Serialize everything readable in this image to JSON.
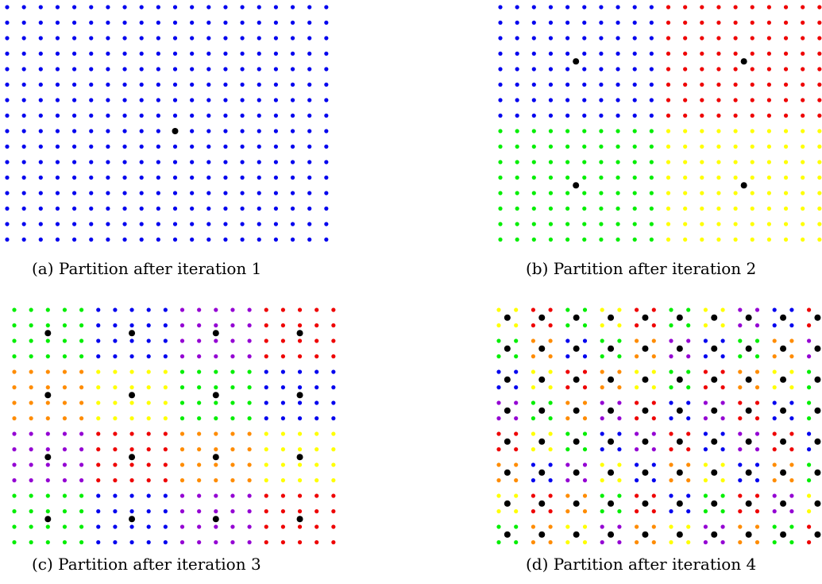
{
  "colors": {
    "blue": "#0000ee",
    "red": "#ee0000",
    "green": "#00ee00",
    "yellow": "#ffff00",
    "orange": "#ff8c00",
    "purple": "#9400d3",
    "center": "#000000"
  },
  "panels": [
    {
      "caption": "(a) Partition after iteration 1",
      "iteration": 1,
      "grid": {
        "cols": 20,
        "rows": 16
      },
      "regions": [
        {
          "col_range": [
            0,
            19
          ],
          "row_range": [
            0,
            15
          ],
          "color": "blue"
        }
      ],
      "centers": [
        {
          "col": 10,
          "row": 8
        }
      ]
    },
    {
      "caption": "(b) Partition after iteration 2",
      "iteration": 2,
      "grid": {
        "cols": 20,
        "rows": 16
      },
      "regions": [
        {
          "col_range": [
            0,
            9
          ],
          "row_range": [
            0,
            7
          ],
          "color": "blue"
        },
        {
          "col_range": [
            10,
            19
          ],
          "row_range": [
            0,
            7
          ],
          "color": "red"
        },
        {
          "col_range": [
            0,
            9
          ],
          "row_range": [
            8,
            15
          ],
          "color": "green"
        },
        {
          "col_range": [
            10,
            19
          ],
          "row_range": [
            8,
            15
          ],
          "color": "yellow"
        }
      ],
      "centers": [
        {
          "col": 4.5,
          "row": 3.5
        },
        {
          "col": 14.5,
          "row": 3.5
        },
        {
          "col": 4.5,
          "row": 11.5
        },
        {
          "col": 14.5,
          "row": 11.5
        }
      ]
    },
    {
      "caption": "(c) Partition after iteration 3",
      "iteration": 3,
      "grid": {
        "cols": 20,
        "rows": 16
      },
      "block_pattern": {
        "block_cols": 5,
        "block_rows": 4,
        "colors": [
          [
            "green",
            "blue",
            "purple",
            "red"
          ],
          [
            "orange",
            "yellow",
            "green",
            "blue"
          ],
          [
            "purple",
            "red",
            "orange",
            "yellow"
          ],
          [
            "green",
            "blue",
            "purple",
            "red"
          ]
        ]
      },
      "centers": [
        {
          "col": 2,
          "row": 1.5
        },
        {
          "col": 7,
          "row": 1.5
        },
        {
          "col": 12,
          "row": 1.5
        },
        {
          "col": 17,
          "row": 1.5
        },
        {
          "col": 2,
          "row": 5.5
        },
        {
          "col": 7,
          "row": 5.5
        },
        {
          "col": 12,
          "row": 5.5
        },
        {
          "col": 17,
          "row": 5.5
        },
        {
          "col": 2,
          "row": 9.5
        },
        {
          "col": 7,
          "row": 9.5
        },
        {
          "col": 12,
          "row": 9.5
        },
        {
          "col": 17,
          "row": 9.5
        },
        {
          "col": 2,
          "row": 13.5
        },
        {
          "col": 7,
          "row": 13.5
        },
        {
          "col": 12,
          "row": 13.5
        },
        {
          "col": 17,
          "row": 13.5
        }
      ]
    },
    {
      "caption": "(d) Partition after iteration 4",
      "iteration": 4,
      "grid": {
        "cols": 20,
        "rows": 16
      },
      "block_pattern": {
        "block_cols": 2,
        "block_rows": 2,
        "colors": [
          [
            "yellow",
            "red",
            "green",
            "yellow",
            "red",
            "green",
            "yellow",
            "purple",
            "blue",
            "red"
          ],
          [
            "green",
            "orange",
            "blue",
            "green",
            "orange",
            "purple",
            "blue",
            "green",
            "orange",
            "purple"
          ],
          [
            "blue",
            "yellow",
            "red",
            "orange",
            "yellow",
            "green",
            "red",
            "orange",
            "yellow",
            "green"
          ],
          [
            "purple",
            "green",
            "orange",
            "purple",
            "red",
            "blue",
            "purple",
            "red",
            "blue",
            "green"
          ],
          [
            "red",
            "yellow",
            "green",
            "blue",
            "purple",
            "red",
            "blue",
            "purple",
            "red",
            "blue"
          ],
          [
            "orange",
            "blue",
            "purple",
            "yellow",
            "blue",
            "orange",
            "yellow",
            "blue",
            "orange",
            "green"
          ],
          [
            "yellow",
            "red",
            "orange",
            "green",
            "red",
            "blue",
            "green",
            "red",
            "purple",
            "yellow"
          ],
          [
            "green",
            "orange",
            "yellow",
            "purple",
            "orange",
            "yellow",
            "purple",
            "orange",
            "green",
            "red"
          ]
        ]
      },
      "centers_per_block": true
    }
  ]
}
